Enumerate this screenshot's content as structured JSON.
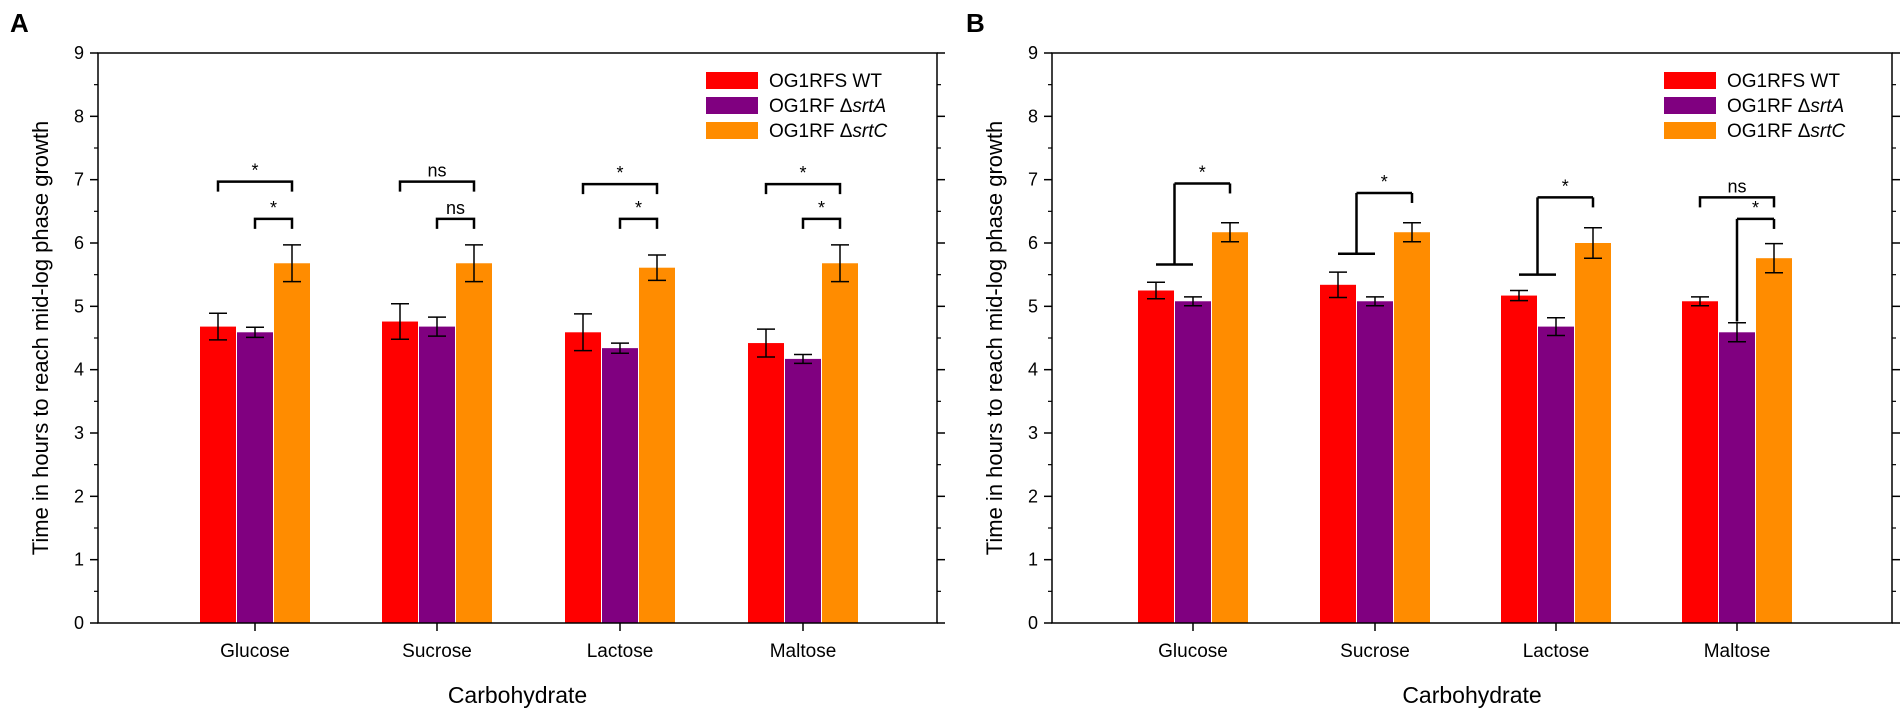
{
  "colors": {
    "wt": "#ff0000",
    "srtA": "#800080",
    "srtC": "#ff8c00",
    "axis": "#000000"
  },
  "chart_data": [
    {
      "panel_label": "A",
      "type": "bar",
      "xlabel": "Carbohydrate",
      "ylabel": "Time in hours to reach mid-log phase growth",
      "ylim": [
        0,
        9
      ],
      "yticks": [
        "0",
        "1",
        "2",
        "3",
        "4",
        "5",
        "6",
        "7",
        "8",
        "9"
      ],
      "categories": [
        "Glucose",
        "Sucrose",
        "Lactose",
        "Maltose"
      ],
      "legend_position": "top-right",
      "series": [
        {
          "name": "OG1RFS WT",
          "name_prefix": "OG1RFS WT",
          "name_italic": "",
          "color_key": "wt",
          "values": [
            4.68,
            4.76,
            4.59,
            4.42
          ],
          "errors": [
            0.21,
            0.28,
            0.29,
            0.22
          ]
        },
        {
          "name": "OG1RF ΔsrtA",
          "name_prefix": "OG1RF Δ",
          "name_italic": "srtA",
          "color_key": "srtA",
          "values": [
            4.59,
            4.68,
            4.34,
            4.17
          ],
          "errors": [
            0.08,
            0.15,
            0.08,
            0.07
          ]
        },
        {
          "name": "OG1RF ΔsrtC",
          "name_prefix": "OG1RF Δ",
          "name_italic": "srtC",
          "color_key": "srtC",
          "values": [
            5.68,
            5.68,
            5.61,
            5.68
          ],
          "errors": [
            0.29,
            0.29,
            0.2,
            0.29
          ]
        }
      ],
      "annotations": [
        {
          "category": 0,
          "from": 0,
          "to": 2,
          "y": 6.97,
          "label": "*"
        },
        {
          "category": 0,
          "from": 1,
          "to": 2,
          "y": 6.38,
          "label": "*"
        },
        {
          "category": 1,
          "from": 0,
          "to": 2,
          "y": 6.97,
          "label": "ns"
        },
        {
          "category": 1,
          "from": 1,
          "to": 2,
          "y": 6.38,
          "label": "ns"
        },
        {
          "category": 2,
          "from": 0,
          "to": 2,
          "y": 6.93,
          "label": "*"
        },
        {
          "category": 2,
          "from": 1,
          "to": 2,
          "y": 6.38,
          "label": "*"
        },
        {
          "category": 3,
          "from": 0,
          "to": 2,
          "y": 6.93,
          "label": "*"
        },
        {
          "category": 3,
          "from": 1,
          "to": 2,
          "y": 6.38,
          "label": "*"
        }
      ]
    },
    {
      "panel_label": "B",
      "type": "bar",
      "xlabel": "Carbohydrate",
      "ylabel": "Time in hours to reach mid-log phase growth",
      "ylim": [
        0,
        9
      ],
      "yticks": [
        "0",
        "1",
        "2",
        "3",
        "4",
        "5",
        "6",
        "7",
        "8",
        "9"
      ],
      "categories": [
        "Glucose",
        "Sucrose",
        "Lactose",
        "Maltose"
      ],
      "legend_position": "top-right",
      "series": [
        {
          "name": "OG1RFS WT",
          "name_prefix": "OG1RFS WT",
          "name_italic": "",
          "color_key": "wt",
          "values": [
            5.25,
            5.34,
            5.17,
            5.08
          ],
          "errors": [
            0.13,
            0.2,
            0.08,
            0.07
          ]
        },
        {
          "name": "OG1RF ΔsrtA",
          "name_prefix": "OG1RF Δ",
          "name_italic": "srtA",
          "color_key": "srtA",
          "values": [
            5.08,
            5.08,
            4.68,
            4.59
          ],
          "errors": [
            0.07,
            0.07,
            0.14,
            0.15
          ]
        },
        {
          "name": "OG1RF ΔsrtC",
          "name_prefix": "OG1RF Δ",
          "name_italic": "srtC",
          "color_key": "srtC",
          "values": [
            6.17,
            6.17,
            6.0,
            5.76
          ],
          "errors": [
            0.15,
            0.15,
            0.24,
            0.23
          ]
        }
      ],
      "annotations": [
        {
          "category": 0,
          "style": "bracket",
          "from": 0.5,
          "to": 2,
          "y": 6.94,
          "label": "*",
          "left_stem_bottom": 5.66,
          "group_from": 0,
          "group_to": 1
        },
        {
          "category": 1,
          "style": "bracket",
          "from": 0.5,
          "to": 2,
          "y": 6.79,
          "label": "*",
          "left_stem_bottom": 5.83,
          "group_from": 0,
          "group_to": 1
        },
        {
          "category": 2,
          "style": "bracket",
          "from": 0.5,
          "to": 2,
          "y": 6.72,
          "label": "*",
          "left_stem_bottom": 5.5,
          "group_from": 0,
          "group_to": 1
        },
        {
          "category": 3,
          "from": 0,
          "to": 2,
          "y": 6.72,
          "label": "ns"
        },
        {
          "category": 3,
          "style": "bracket",
          "from": 1,
          "to": 2,
          "y": 6.38,
          "label": "*",
          "left_stem_bottom": 4.76
        }
      ]
    }
  ]
}
